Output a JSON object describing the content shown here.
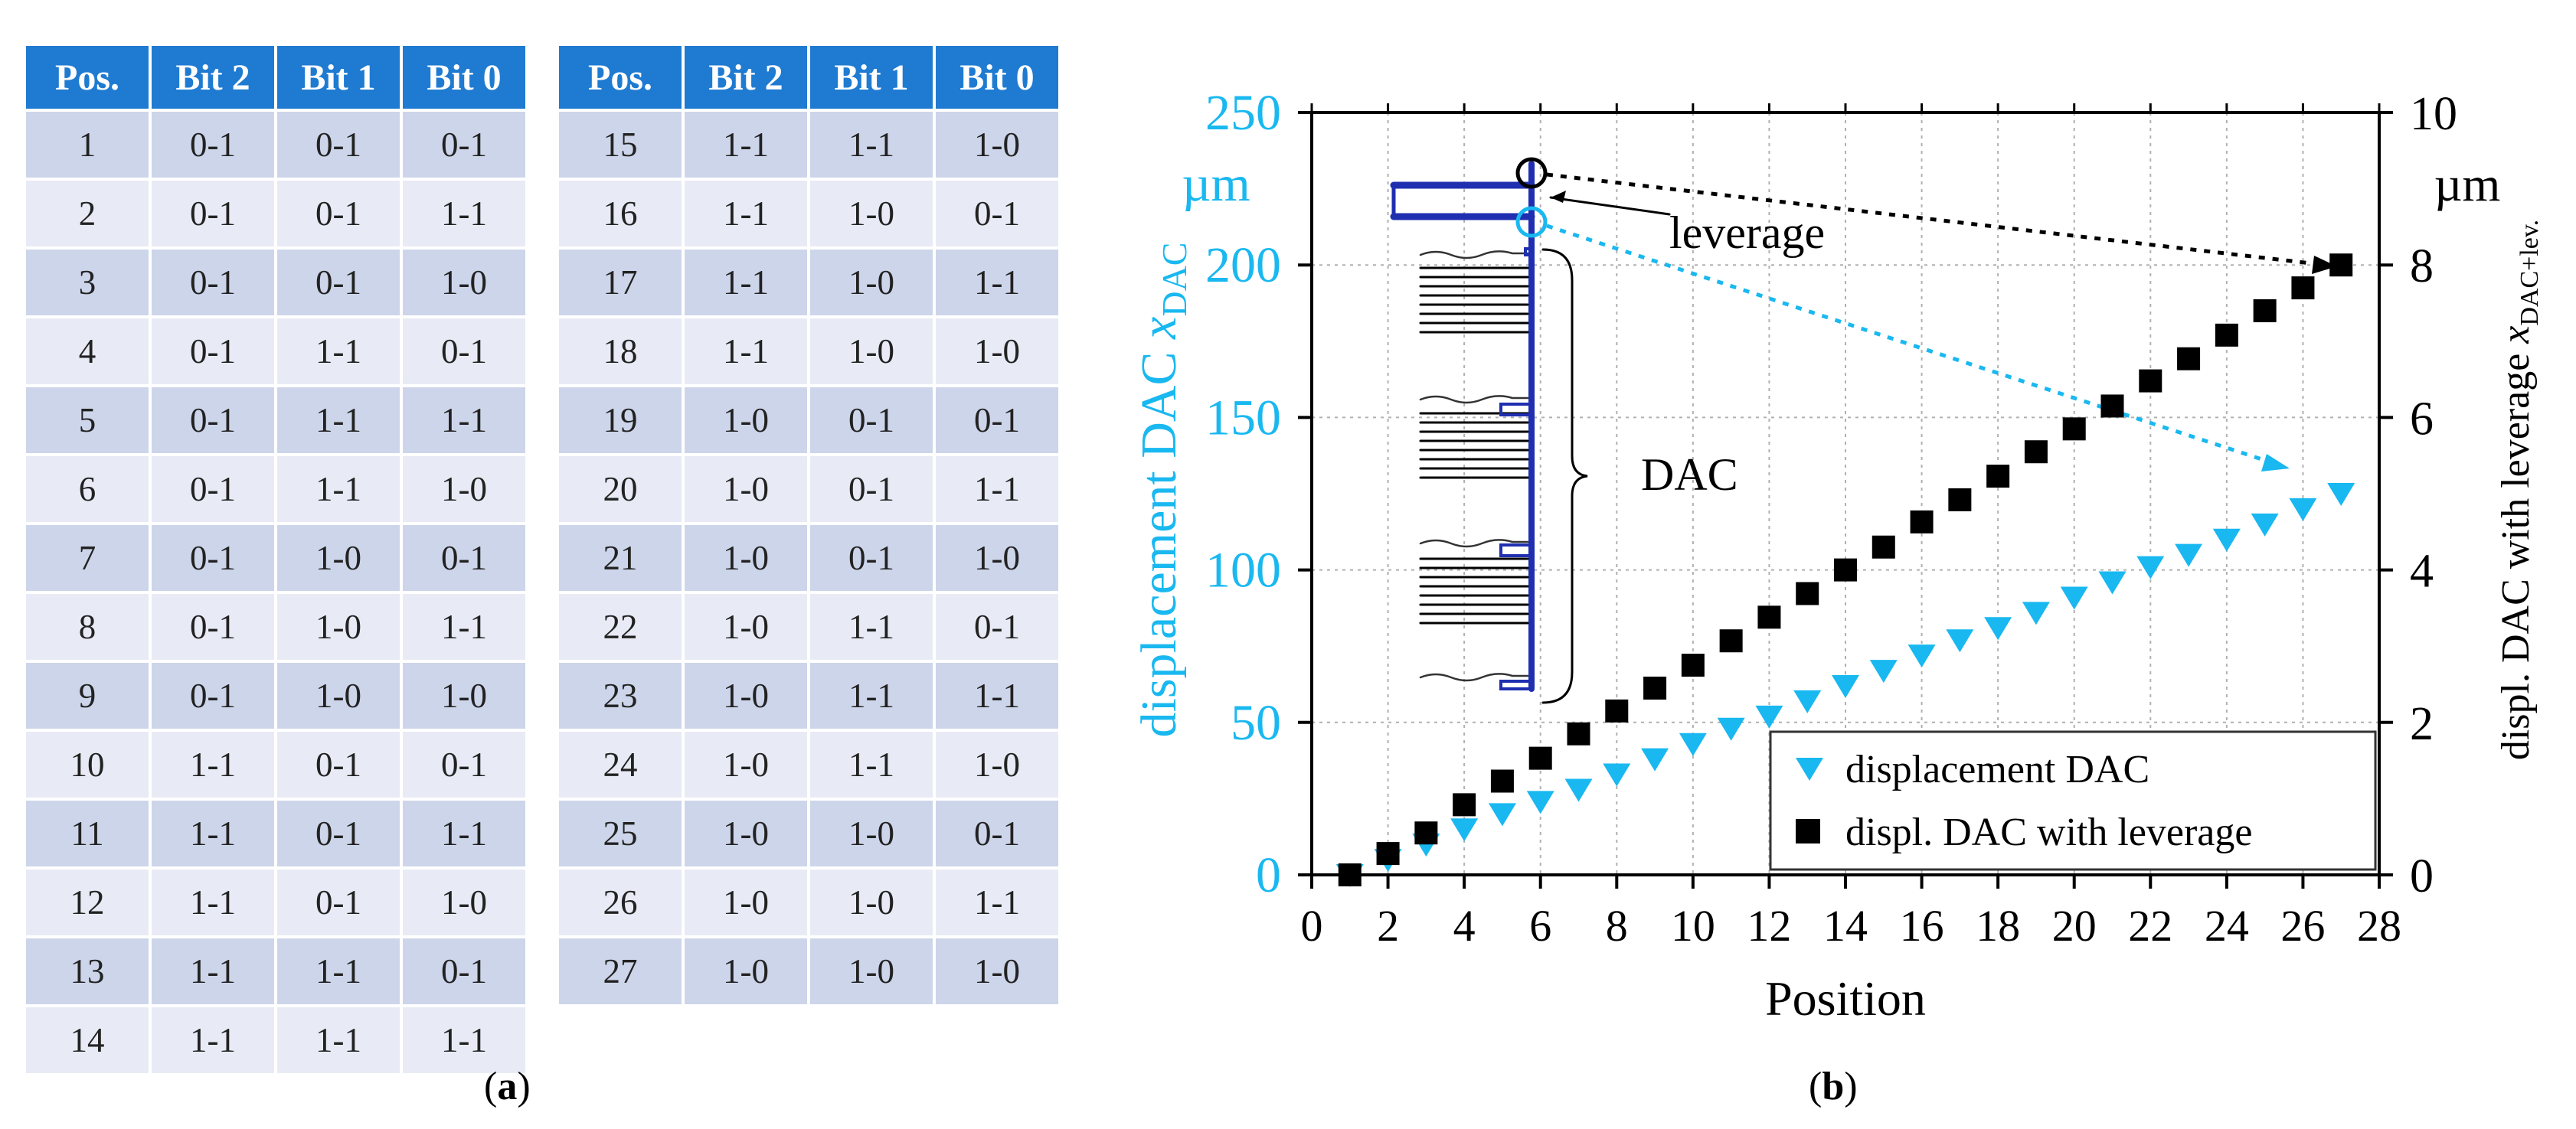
{
  "table": {
    "headers": [
      "Pos.",
      "Bit 2",
      "Bit 1",
      "Bit 0"
    ],
    "left_rows": [
      [
        "1",
        "0-1",
        "0-1",
        "0-1"
      ],
      [
        "2",
        "0-1",
        "0-1",
        "1-1"
      ],
      [
        "3",
        "0-1",
        "0-1",
        "1-0"
      ],
      [
        "4",
        "0-1",
        "1-1",
        "0-1"
      ],
      [
        "5",
        "0-1",
        "1-1",
        "1-1"
      ],
      [
        "6",
        "0-1",
        "1-1",
        "1-0"
      ],
      [
        "7",
        "0-1",
        "1-0",
        "0-1"
      ],
      [
        "8",
        "0-1",
        "1-0",
        "1-1"
      ],
      [
        "9",
        "0-1",
        "1-0",
        "1-0"
      ],
      [
        "10",
        "1-1",
        "0-1",
        "0-1"
      ],
      [
        "11",
        "1-1",
        "0-1",
        "1-1"
      ],
      [
        "12",
        "1-1",
        "0-1",
        "1-0"
      ],
      [
        "13",
        "1-1",
        "1-1",
        "0-1"
      ],
      [
        "14",
        "1-1",
        "1-1",
        "1-1"
      ]
    ],
    "right_rows": [
      [
        "15",
        "1-1",
        "1-1",
        "1-0"
      ],
      [
        "16",
        "1-1",
        "1-0",
        "0-1"
      ],
      [
        "17",
        "1-1",
        "1-0",
        "1-1"
      ],
      [
        "18",
        "1-1",
        "1-0",
        "1-0"
      ],
      [
        "19",
        "1-0",
        "0-1",
        "0-1"
      ],
      [
        "20",
        "1-0",
        "0-1",
        "1-1"
      ],
      [
        "21",
        "1-0",
        "0-1",
        "1-0"
      ],
      [
        "22",
        "1-0",
        "1-1",
        "0-1"
      ],
      [
        "23",
        "1-0",
        "1-1",
        "1-1"
      ],
      [
        "24",
        "1-0",
        "1-1",
        "1-0"
      ],
      [
        "25",
        "1-0",
        "1-0",
        "0-1"
      ],
      [
        "26",
        "1-0",
        "1-0",
        "1-1"
      ],
      [
        "27",
        "1-0",
        "1-0",
        "1-0"
      ]
    ]
  },
  "labels": {
    "a_open": "(",
    "a_letter": "a",
    "a_close": ")",
    "b_open": "(",
    "b_letter": "b",
    "b_close": ")"
  },
  "colors": {
    "header_bg": "#1f7bd1",
    "row_odd": "#cdd5ea",
    "row_even": "#e8ebf5",
    "cyan": "#19b8f0",
    "black": "#000000",
    "mechanism_blue": "#1f2fb0"
  },
  "chart_data": {
    "type": "scatter",
    "xlabel": "Position",
    "x_ticks": [
      0,
      2,
      4,
      6,
      8,
      10,
      12,
      14,
      16,
      18,
      20,
      22,
      24,
      26,
      28
    ],
    "xlim": [
      0,
      28
    ],
    "y_left": {
      "label": "displacement DAC ",
      "symbol": "x",
      "subscript": "DAC",
      "unit": "µm",
      "ticks": [
        0,
        50,
        100,
        150,
        200,
        250
      ],
      "lim": [
        0,
        250
      ]
    },
    "y_right": {
      "label": "displ. DAC with leverage ",
      "symbol": "x",
      "subscript": "DAC+lev.",
      "unit": "µm",
      "ticks": [
        0,
        2,
        4,
        6,
        8,
        10
      ],
      "lim": [
        0,
        10
      ]
    },
    "grid": true,
    "legend_position": "bottom-right",
    "series": [
      {
        "name": "displacement DAC",
        "axis": "left",
        "marker": "triangle-down",
        "x": [
          1,
          2,
          3,
          4,
          5,
          6,
          7,
          8,
          9,
          10,
          11,
          12,
          13,
          14,
          15,
          16,
          17,
          18,
          19,
          20,
          21,
          22,
          23,
          24,
          25,
          26,
          27
        ],
        "y": [
          0,
          5,
          10,
          15,
          20,
          24,
          28,
          33,
          38,
          43,
          48,
          52,
          57,
          62,
          67,
          72,
          77,
          81,
          86,
          91,
          96,
          101,
          105,
          110,
          115,
          120,
          125
        ]
      },
      {
        "name": "displ. DAC with leverage",
        "axis": "right",
        "marker": "square",
        "x": [
          1,
          2,
          3,
          4,
          5,
          6,
          7,
          8,
          9,
          10,
          11,
          12,
          13,
          14,
          15,
          16,
          17,
          18,
          19,
          20,
          21,
          22,
          23,
          24,
          25,
          26,
          27
        ],
        "y": [
          0,
          0.28,
          0.55,
          0.92,
          1.23,
          1.53,
          1.85,
          2.15,
          2.45,
          2.75,
          3.07,
          3.38,
          3.69,
          4.0,
          4.3,
          4.63,
          4.92,
          5.23,
          5.55,
          5.85,
          6.15,
          6.48,
          6.77,
          7.08,
          7.4,
          7.7,
          8.0
        ]
      }
    ],
    "annotations": {
      "leverage": "leverage",
      "dac": "DAC"
    }
  }
}
